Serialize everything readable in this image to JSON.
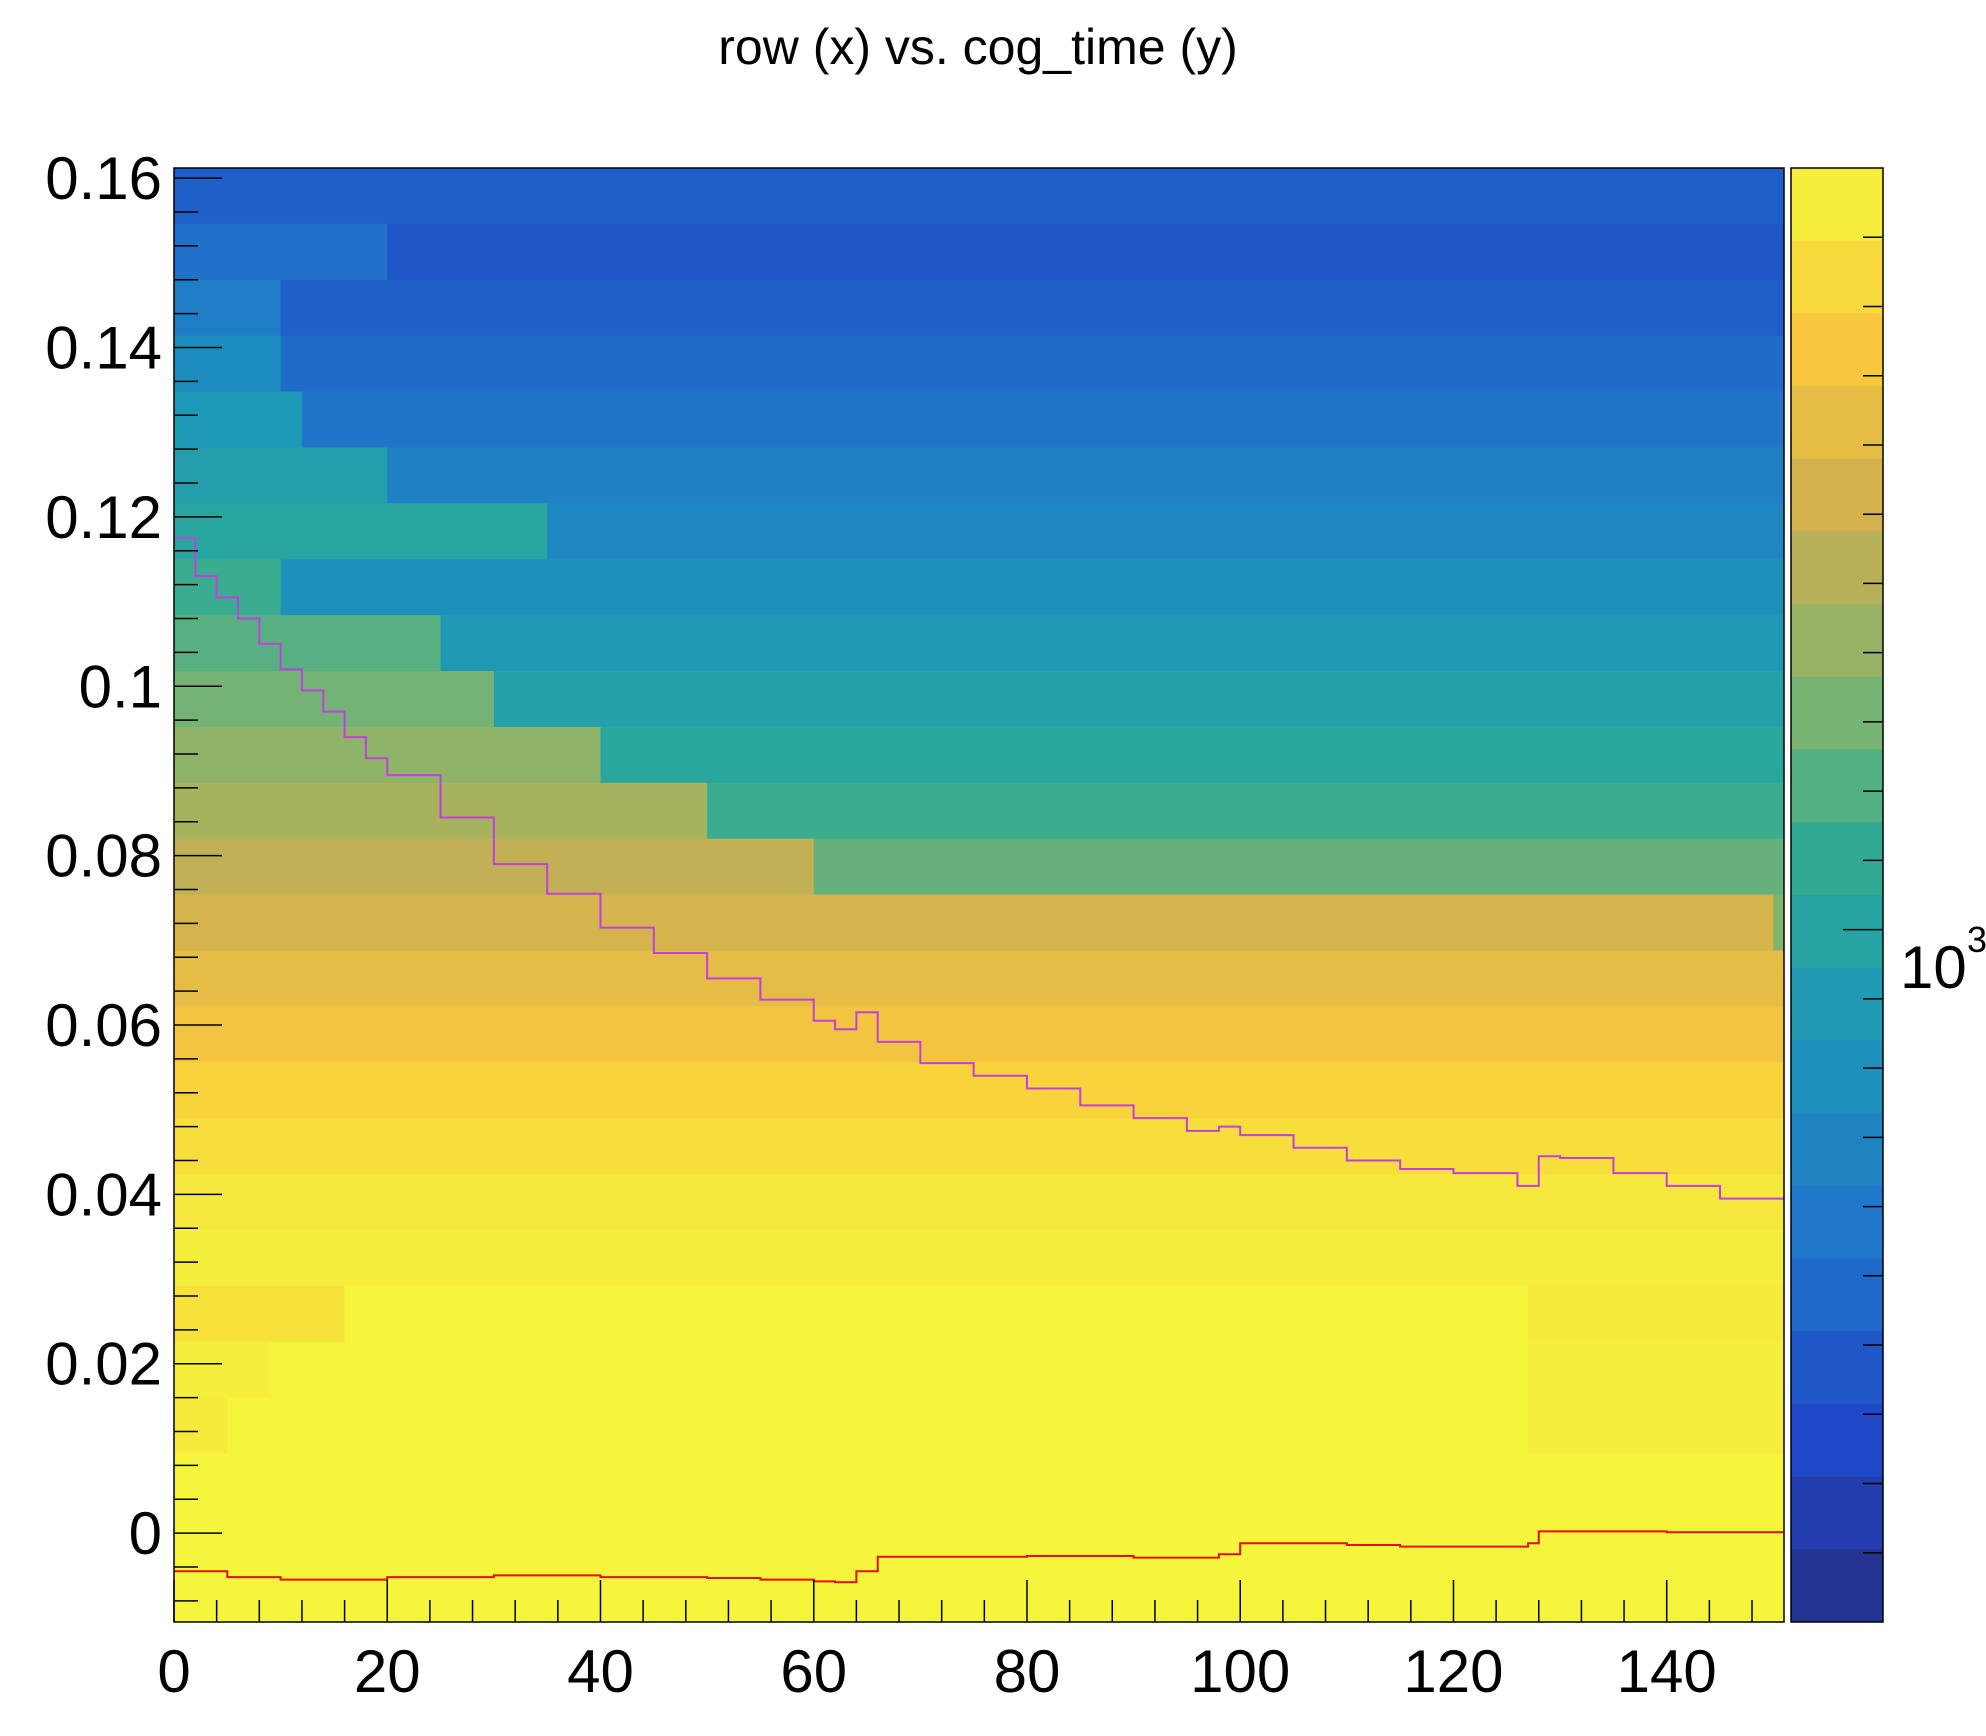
{
  "chart_data": {
    "type": "heatmap",
    "title": "row (x) vs. cog_time (y)",
    "xlabel": "",
    "ylabel": "",
    "xlim": [
      0,
      151
    ],
    "ylim": [
      -0.0105,
      0.1612
    ],
    "x_ticks": [
      0,
      20,
      40,
      60,
      80,
      100,
      120,
      140
    ],
    "x_tick_labels": [
      "0",
      "20",
      "40",
      "60",
      "80",
      "100",
      "120",
      "140"
    ],
    "y_ticks": [
      0,
      0.02,
      0.04,
      0.06,
      0.08,
      0.1,
      0.12,
      0.14,
      0.16
    ],
    "y_tick_labels": [
      "0",
      "0.02",
      "0.04",
      "0.06",
      "0.08",
      "0.1",
      "0.12",
      "0.14",
      "0.16"
    ],
    "z_scale": "log",
    "colorbar_label": "10",
    "colorbar_label_exponent": "3",
    "bin_height": 0.0066,
    "y_bins_from_top": [
      [
        [
          0,
          151,
          0.8
        ]
      ],
      [
        [
          0,
          20,
          0.74
        ],
        [
          20,
          151,
          0.83
        ]
      ],
      [
        [
          0,
          10,
          0.7
        ],
        [
          10,
          151,
          0.8
        ]
      ],
      [
        [
          0,
          10,
          0.64
        ],
        [
          10,
          151,
          0.76
        ]
      ],
      [
        [
          0,
          12,
          0.59
        ],
        [
          12,
          151,
          0.73
        ]
      ],
      [
        [
          0,
          20,
          0.55
        ],
        [
          20,
          151,
          0.69
        ]
      ],
      [
        [
          0,
          35,
          0.51
        ],
        [
          35,
          151,
          0.66
        ]
      ],
      [
        [
          0,
          10,
          0.46
        ],
        [
          10,
          151,
          0.62
        ]
      ],
      [
        [
          0,
          25,
          0.42
        ],
        [
          25,
          151,
          0.58
        ]
      ],
      [
        [
          0,
          30,
          0.38
        ],
        [
          30,
          151,
          0.54
        ]
      ],
      [
        [
          0,
          40,
          0.34
        ],
        [
          40,
          151,
          0.5
        ]
      ],
      [
        [
          0,
          50,
          0.3
        ],
        [
          50,
          151,
          0.46
        ]
      ],
      [
        [
          0,
          60,
          0.26
        ],
        [
          60,
          151,
          0.4
        ]
      ],
      [
        [
          0,
          150,
          0.22
        ],
        [
          150,
          151,
          0.36
        ]
      ],
      [
        [
          0,
          151,
          0.18
        ]
      ],
      [
        [
          0,
          151,
          0.14
        ]
      ],
      [
        [
          0,
          151,
          0.09
        ]
      ],
      [
        [
          0,
          151,
          0.06
        ]
      ],
      [
        [
          0,
          151,
          0.035
        ]
      ],
      [
        [
          0,
          151,
          0.02
        ]
      ],
      [
        [
          0,
          16,
          0.05
        ],
        [
          16,
          127,
          0.0
        ],
        [
          127,
          151,
          0.03
        ]
      ],
      [
        [
          0,
          9,
          0.02
        ],
        [
          9,
          127,
          0.0
        ],
        [
          127,
          151,
          0.02
        ]
      ],
      [
        [
          0,
          5,
          0.03
        ],
        [
          5,
          127,
          0.0
        ],
        [
          127,
          151,
          0.02
        ]
      ],
      [
        [
          0,
          151,
          0.0
        ]
      ],
      [
        [
          0,
          151,
          0.0
        ]
      ],
      [
        [
          0,
          151,
          0.0
        ]
      ]
    ],
    "series": [
      {
        "style": "magenta step",
        "color": "#c23fe0",
        "x": [
          0,
          2,
          4,
          6,
          8,
          10,
          12,
          14,
          16,
          18,
          20,
          25,
          30,
          35,
          40,
          45,
          50,
          55,
          60,
          62,
          64,
          66,
          70,
          75,
          80,
          85,
          90,
          95,
          98,
          100,
          105,
          110,
          115,
          120,
          126,
          128,
          130,
          135,
          140,
          145,
          151
        ],
        "y": [
          0.1175,
          0.113,
          0.1105,
          0.108,
          0.105,
          0.102,
          0.0995,
          0.097,
          0.094,
          0.0915,
          0.0895,
          0.0845,
          0.079,
          0.0755,
          0.0715,
          0.0685,
          0.0655,
          0.063,
          0.0605,
          0.0595,
          0.0615,
          0.058,
          0.0555,
          0.054,
          0.0525,
          0.0505,
          0.049,
          0.0475,
          0.048,
          0.047,
          0.0455,
          0.044,
          0.043,
          0.0425,
          0.041,
          0.0445,
          0.0443,
          0.0425,
          0.041,
          0.0395,
          0.0393
        ]
      },
      {
        "style": "red step",
        "color": "#e01010",
        "x": [
          0,
          5,
          10,
          20,
          30,
          40,
          50,
          55,
          60,
          62,
          64,
          66,
          70,
          80,
          90,
          98,
          100,
          110,
          115,
          125,
          127,
          128,
          130,
          140,
          151
        ],
        "y": [
          -0.0045,
          -0.0052,
          -0.0055,
          -0.0052,
          -0.005,
          -0.0052,
          -0.0053,
          -0.0055,
          -0.0057,
          -0.0058,
          -0.0045,
          -0.0028,
          -0.0028,
          -0.0027,
          -0.0029,
          -0.0025,
          -0.0012,
          -0.0014,
          -0.0016,
          -0.0016,
          -0.0012,
          0.0002,
          0.0002,
          0.0001,
          0.0001
        ]
      }
    ]
  }
}
